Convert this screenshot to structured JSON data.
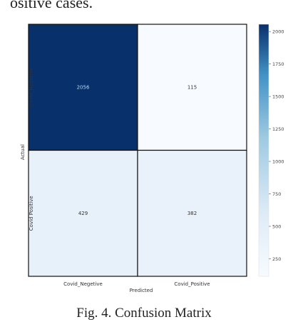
{
  "header_text": "ositive cases.",
  "caption": "Fig. 4.   Confusion Matrix",
  "chart_data": {
    "type": "heatmap",
    "xlabel": "Predicted",
    "ylabel": "Actual",
    "x_categories": [
      "Covid_Negetive",
      "Covid_Positive"
    ],
    "y_categories": [
      "Covid_Negetive",
      "Covid Positive"
    ],
    "cells": [
      {
        "actual": "Covid_Negetive",
        "predicted": "Covid_Negetive",
        "label": "2056",
        "value": 2056
      },
      {
        "actual": "Covid_Negetive",
        "predicted": "Covid_Positive",
        "label": "115",
        "value": 115
      },
      {
        "actual": "Covid Positive",
        "predicted": "Covid_Negetive",
        "label": "429",
        "value": 429
      },
      {
        "actual": "Covid Positive",
        "predicted": "Covid_Positive",
        "label": "382",
        "value": 382
      }
    ],
    "colorbar": {
      "min": 115,
      "max": 2056,
      "ticks": [
        250,
        500,
        750,
        1000,
        1250,
        1500,
        1750,
        2000
      ],
      "colormap": "Blues"
    },
    "colors": {
      "low": "#f7fbff",
      "mid_low": "#deebf7",
      "mid": "#9ecae1",
      "mid_high": "#4292c6",
      "high": "#08306b",
      "dark_cell_text": "#b8d8ee",
      "light_cell_text": "#333333"
    }
  }
}
